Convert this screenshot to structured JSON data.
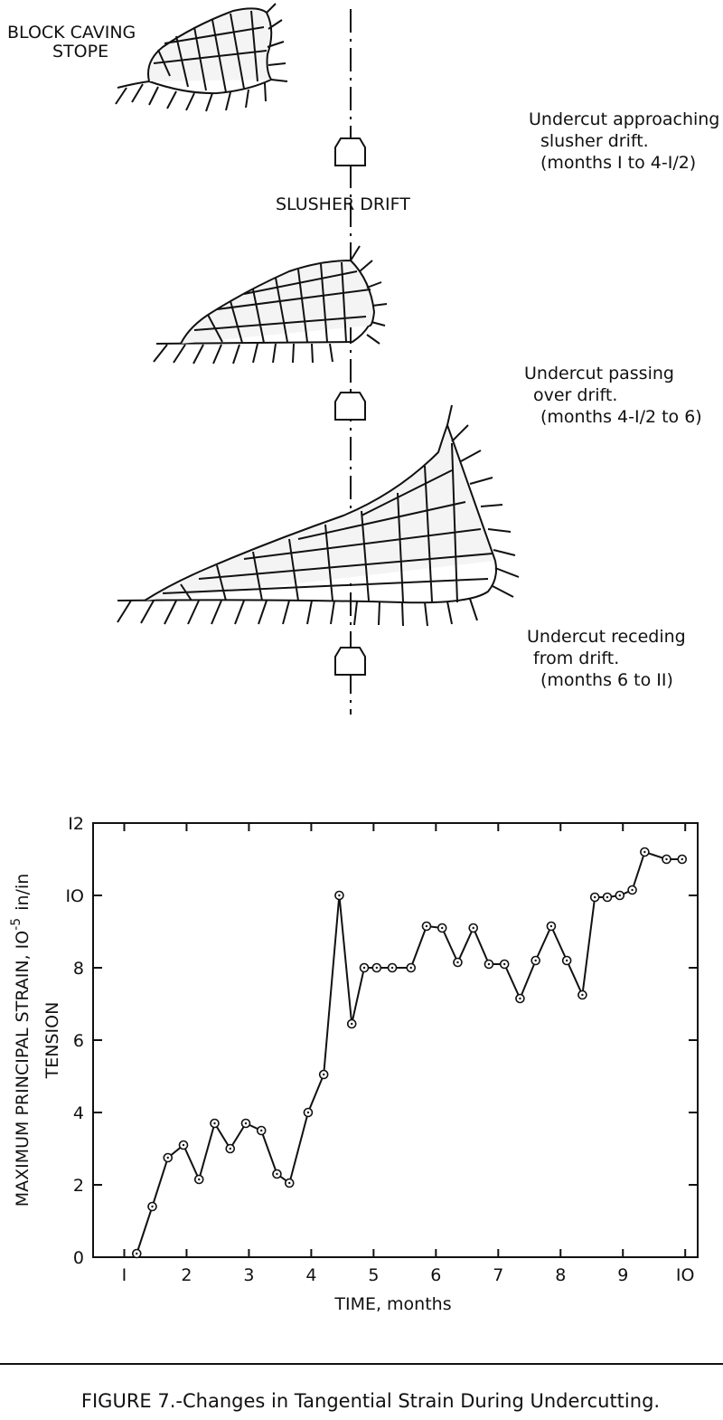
{
  "diagram": {
    "stope_label_line1": "BLOCK CAVING",
    "stope_label_line2": "STOPE",
    "drift_label": "SLUSHER DRIFT",
    "stages": [
      {
        "line1": "Undercut approaching",
        "line2": "slusher drift.",
        "line3": "(months I to 4-I/2)"
      },
      {
        "line1": "Undercut passing",
        "line2": "over drift.",
        "line3": "(months 4-I/2 to 6)"
      },
      {
        "line1": "Undercut receding",
        "line2": "from drift.",
        "line3": "(months 6 to II)"
      }
    ]
  },
  "chart_data": {
    "type": "line",
    "xlabel": "TIME, months",
    "ylabel_line1": "MAXIMUM PRINCIPAL STRAIN, IO",
    "ylabel_exponent": "-5",
    "ylabel_unit": "in/in",
    "ylabel_line2": "TENSION",
    "xlim": [
      0.5,
      10.2
    ],
    "ylim": [
      0,
      12
    ],
    "x_ticks": [
      1,
      2,
      3,
      4,
      5,
      6,
      7,
      8,
      9,
      10
    ],
    "x_tick_labels": [
      "I",
      "2",
      "3",
      "4",
      "5",
      "6",
      "7",
      "8",
      "9",
      "IO"
    ],
    "y_ticks": [
      0,
      2,
      4,
      6,
      8,
      10,
      12
    ],
    "y_tick_labels": [
      "0",
      "2",
      "4",
      "6",
      "8",
      "IO",
      "I2"
    ],
    "grid": false,
    "series": [
      {
        "x": [
          1.2,
          1.45,
          1.7,
          1.95,
          2.2,
          2.45,
          2.7,
          2.95,
          3.2,
          3.45,
          3.65,
          3.95,
          4.2,
          4.45,
          4.65,
          4.85,
          5.05,
          5.3,
          5.6,
          5.85,
          6.1,
          6.35,
          6.6,
          6.85,
          7.1,
          7.35,
          7.6,
          7.85,
          8.1,
          8.35,
          8.55,
          8.75,
          8.95,
          9.15,
          9.35,
          9.7,
          9.95
        ],
        "y": [
          0.1,
          1.4,
          2.75,
          3.1,
          2.15,
          3.7,
          3.0,
          3.7,
          3.5,
          2.3,
          2.05,
          4.0,
          5.05,
          10.0,
          6.45,
          8.0,
          8.0,
          8.0,
          8.0,
          9.15,
          9.1,
          8.15,
          9.1,
          8.1,
          8.1,
          7.15,
          8.2,
          9.15,
          8.2,
          7.25,
          9.95,
          9.95,
          10.0,
          10.15,
          11.2,
          11.0,
          11.0
        ]
      }
    ]
  },
  "caption": "FIGURE 7.-Changes in Tangential Strain During Undercutting."
}
